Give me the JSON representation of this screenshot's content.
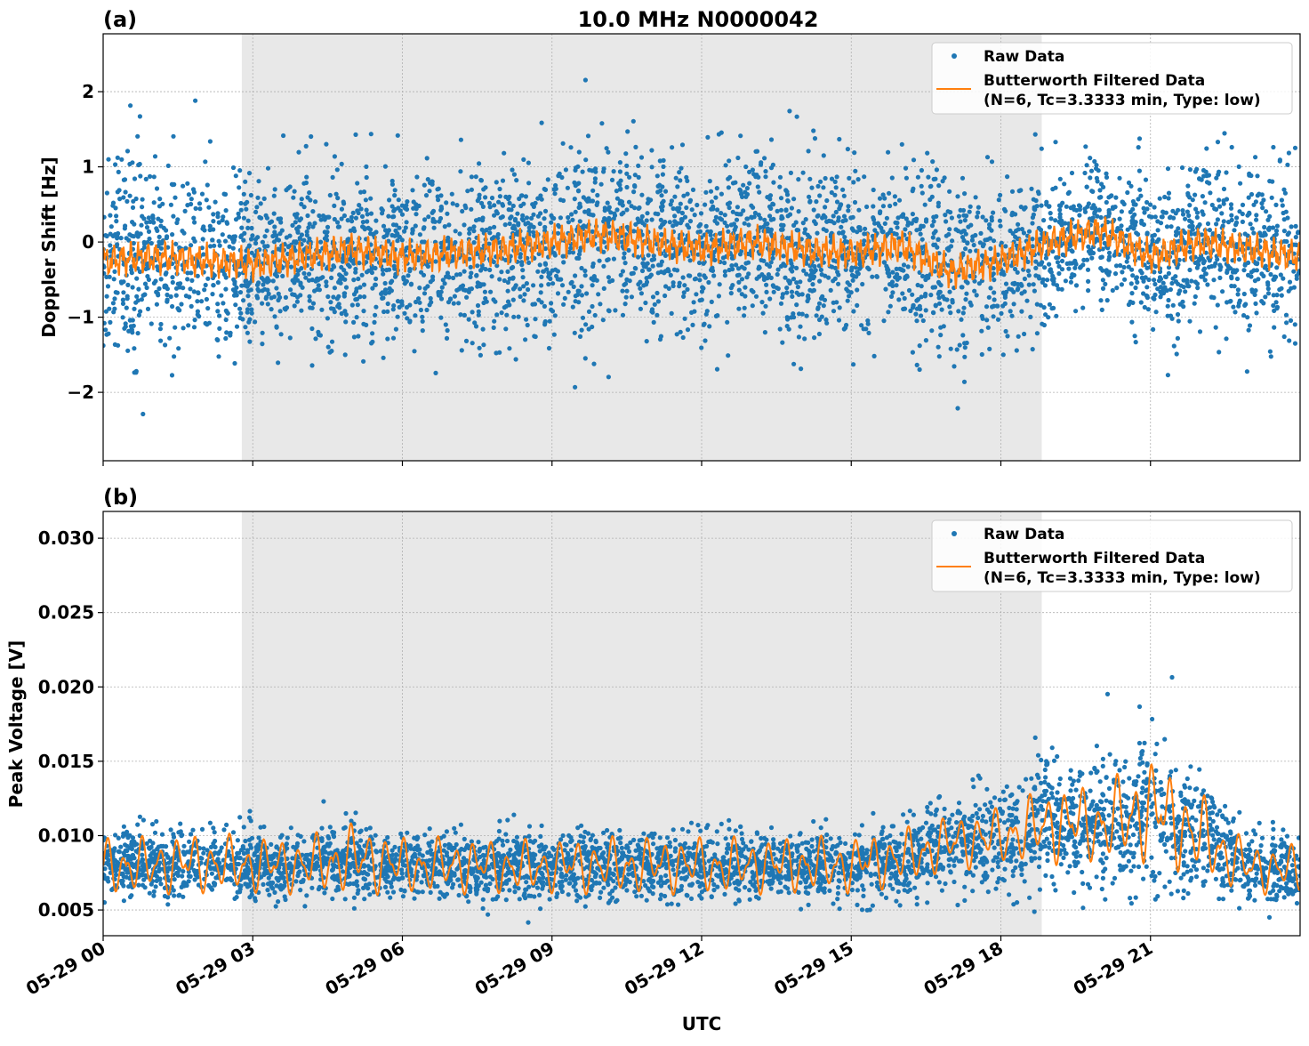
{
  "title": "10.0 MHz N0000042",
  "xlabel": "UTC",
  "x_ticks": [
    "05-29 00",
    "05-29 03",
    "05-29 06",
    "05-29 09",
    "05-29 12",
    "05-29 15",
    "05-29 18",
    "05-29 21"
  ],
  "x_tick_hours": [
    0,
    3,
    6,
    9,
    12,
    15,
    18,
    21
  ],
  "xlim_hours": [
    0,
    24
  ],
  "shaded_interval_hours": [
    2.78,
    18.82
  ],
  "colors": {
    "raw": "#1f77b4",
    "filtered": "#ff7f0e",
    "shade": "#e8e8e8",
    "grid": "#b0b0b0"
  },
  "legend": {
    "raw": "Raw Data",
    "filtered_line1": "Butterworth Filtered Data",
    "filtered_line2": "(N=6, Tc=3.3333 min, Type: low)",
    "placement": "upper-right"
  },
  "chart_data": [
    {
      "type": "scatter+line",
      "panel_label": "(a)",
      "ylabel": "Doppler Shift [Hz]",
      "ylim": [
        -2.91,
        2.77
      ],
      "y_ticks": [
        2,
        1,
        0,
        -1,
        -2
      ],
      "y_tick_labels": [
        "2",
        "1",
        "0",
        "−1",
        "−2"
      ],
      "grid": true,
      "hours": [
        0,
        1,
        2,
        3,
        4,
        5,
        6,
        7,
        8,
        9,
        10,
        11,
        12,
        13,
        14,
        15,
        16,
        17,
        18,
        19,
        20,
        21,
        22,
        23,
        24
      ],
      "filtered_hourly": [
        -0.25,
        -0.2,
        -0.25,
        -0.3,
        -0.2,
        -0.1,
        -0.2,
        -0.15,
        -0.1,
        0.0,
        0.1,
        0.0,
        -0.1,
        0.0,
        -0.1,
        -0.15,
        -0.05,
        -0.4,
        -0.25,
        0.0,
        0.15,
        -0.2,
        0.0,
        -0.1,
        -0.2
      ],
      "raw_spread_sd_hourly": [
        0.55,
        0.55,
        0.55,
        0.5,
        0.5,
        0.5,
        0.5,
        0.5,
        0.5,
        0.55,
        0.55,
        0.5,
        0.5,
        0.5,
        0.5,
        0.5,
        0.5,
        0.55,
        0.5,
        0.4,
        0.4,
        0.45,
        0.45,
        0.5,
        0.5
      ]
    },
    {
      "type": "scatter+line",
      "panel_label": "(b)",
      "ylabel": "Peak Voltage [V]",
      "ylim": [
        0.00327,
        0.0318
      ],
      "y_ticks": [
        0.03,
        0.025,
        0.02,
        0.015,
        0.01,
        0.005
      ],
      "y_tick_labels": [
        "0.030",
        "0.025",
        "0.020",
        "0.015",
        "0.010",
        "0.005"
      ],
      "grid": true,
      "hours": [
        0,
        1,
        2,
        3,
        4,
        5,
        6,
        7,
        8,
        9,
        10,
        11,
        12,
        13,
        14,
        15,
        16,
        17,
        18,
        19,
        20,
        21,
        22,
        23,
        24
      ],
      "filtered_hourly_min": [
        0.006,
        0.006,
        0.006,
        0.006,
        0.006,
        0.006,
        0.006,
        0.006,
        0.006,
        0.006,
        0.006,
        0.006,
        0.006,
        0.006,
        0.006,
        0.006,
        0.0065,
        0.0075,
        0.008,
        0.008,
        0.008,
        0.008,
        0.007,
        0.006,
        0.006
      ],
      "filtered_hourly_max": [
        0.01,
        0.01,
        0.0103,
        0.01,
        0.01,
        0.011,
        0.01,
        0.01,
        0.0098,
        0.0098,
        0.01,
        0.01,
        0.01,
        0.01,
        0.01,
        0.01,
        0.0105,
        0.0115,
        0.012,
        0.0135,
        0.0135,
        0.0155,
        0.013,
        0.0095,
        0.0095
      ],
      "raw_spread_sd_hourly": [
        0.0011,
        0.0011,
        0.0011,
        0.0011,
        0.0011,
        0.0012,
        0.0011,
        0.0011,
        0.0011,
        0.0011,
        0.0011,
        0.0011,
        0.0011,
        0.0011,
        0.0011,
        0.0011,
        0.0012,
        0.0014,
        0.0018,
        0.0022,
        0.0022,
        0.0026,
        0.0018,
        0.0012,
        0.0011
      ]
    }
  ]
}
